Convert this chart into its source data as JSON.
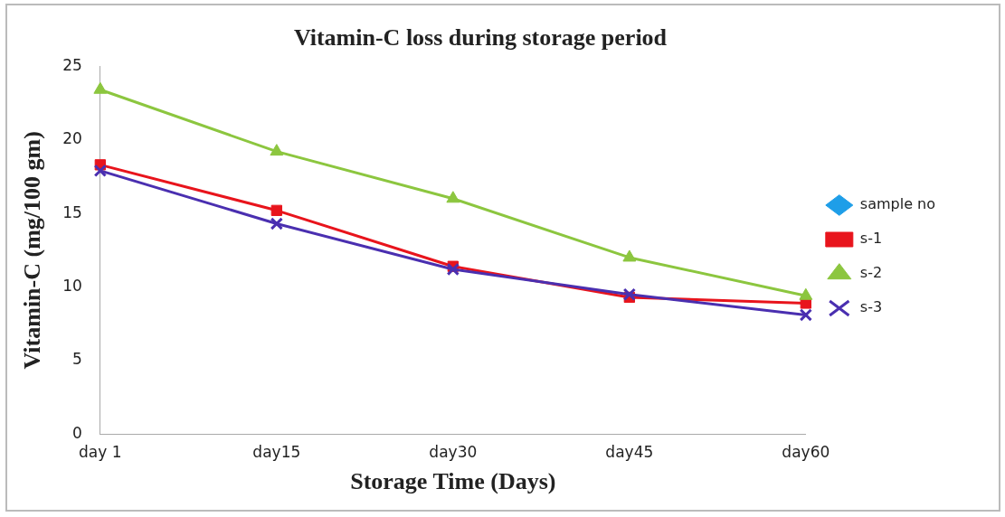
{
  "chart_data": {
    "type": "line",
    "title": "Vitamin-C loss during storage period",
    "xlabel": "Storage Time (Days)",
    "ylabel": "Vitamin-C (mg/100 gm)",
    "categories": [
      "day 1",
      "day15",
      "day30",
      "day45",
      "day60"
    ],
    "ylim": [
      0,
      25
    ],
    "yticks": [
      0,
      5,
      10,
      15,
      20,
      25
    ],
    "grid": false,
    "legend": "right",
    "series": [
      {
        "name": "sample no",
        "color": "#1e9ee8",
        "marker": "diamond",
        "values": [
          null,
          null,
          null,
          null,
          null
        ]
      },
      {
        "name": "s-1",
        "color": "#e8141c",
        "marker": "square",
        "values": [
          18.3,
          15.2,
          11.4,
          9.3,
          8.9
        ]
      },
      {
        "name": "s-2",
        "color": "#8cc63f",
        "marker": "triangle",
        "values": [
          23.4,
          19.2,
          16.0,
          12.0,
          9.4
        ]
      },
      {
        "name": "s-3",
        "color": "#4a2fb0",
        "marker": "cross",
        "values": [
          17.9,
          14.3,
          11.2,
          9.5,
          8.1
        ]
      }
    ]
  }
}
